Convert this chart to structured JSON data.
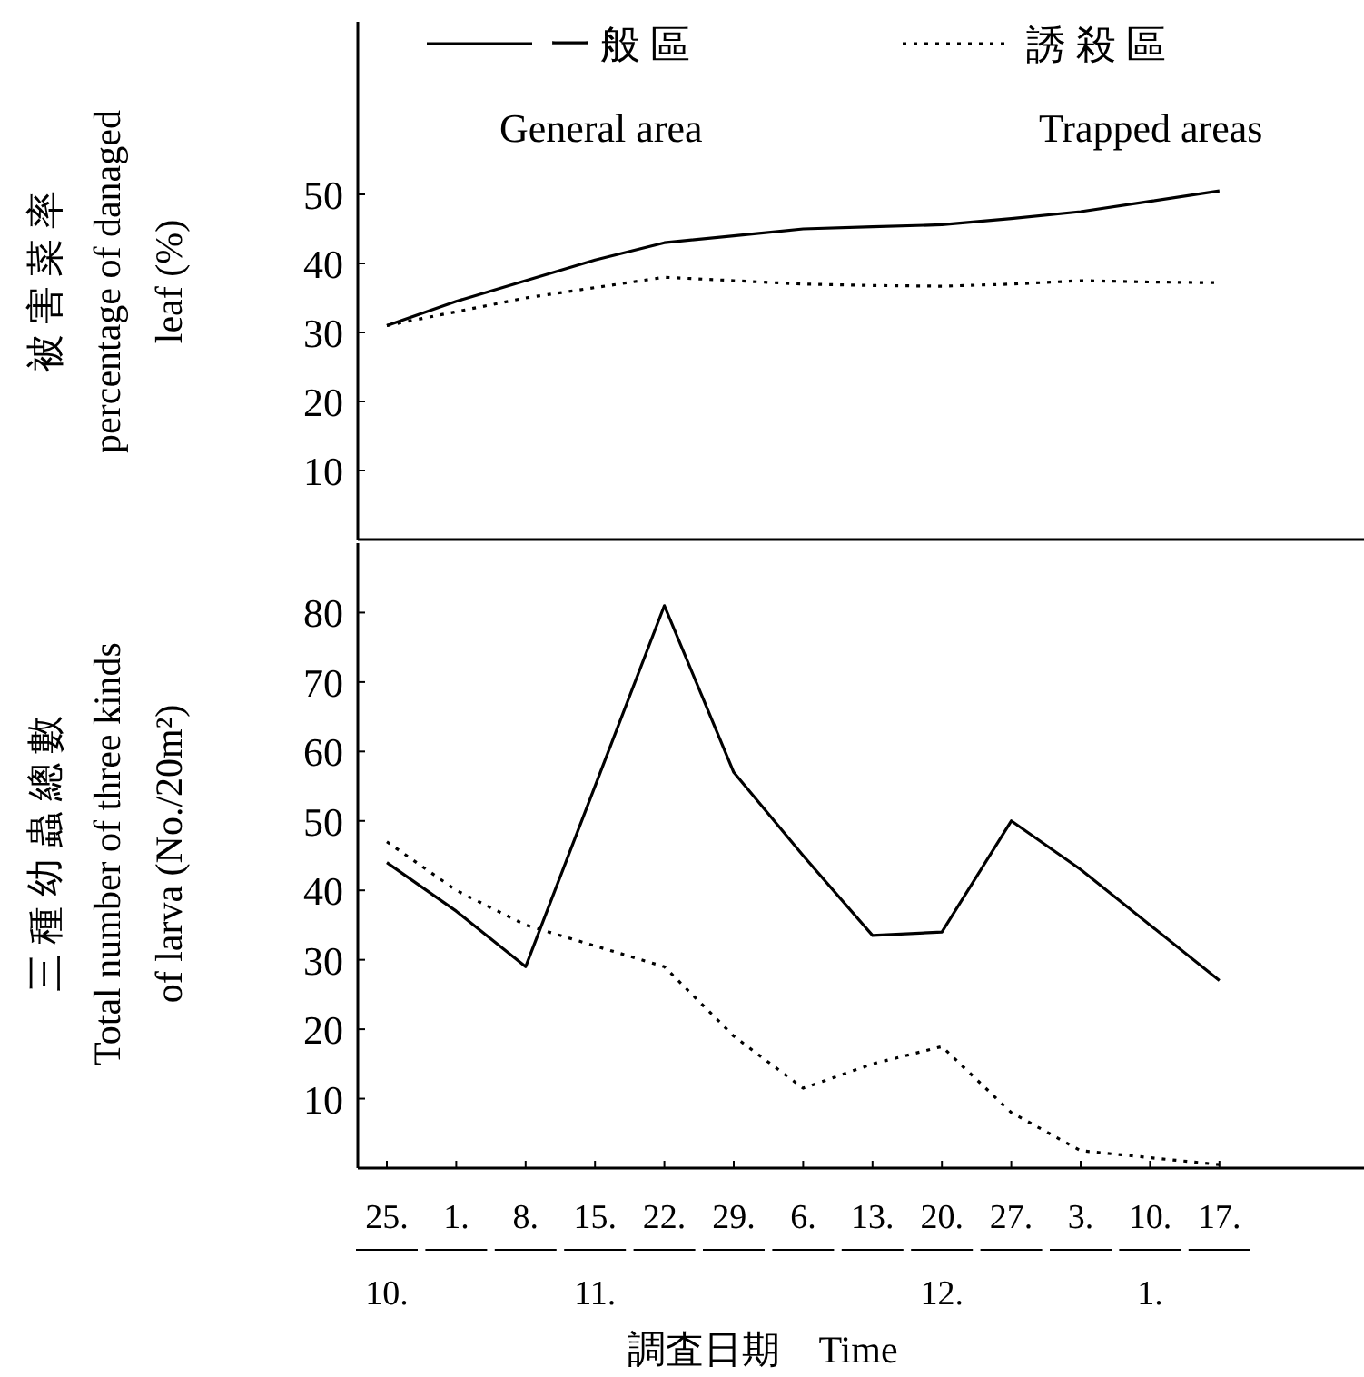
{
  "chart_data": [
    {
      "type": "line",
      "categories": [
        "25.",
        "1.",
        "8.",
        "15.",
        "22.",
        "29.",
        "6.",
        "13.",
        "20.",
        "27.",
        "3.",
        "10.",
        "17."
      ],
      "ylabel": "被 害 菜 率\npercentage of danaged\nleaf (%)",
      "ylim": [
        0,
        75
      ],
      "yticks": [
        10,
        20,
        30,
        40,
        50
      ],
      "tick_labels": "y",
      "legend": "top",
      "series": [
        {
          "name": "一 般 區\nGeneral area",
          "color": "#000000",
          "line_style": "solid",
          "values": [
            31,
            34.5,
            37.5,
            40.5,
            43,
            44,
            45,
            45.3,
            45.6,
            46.5,
            47.5,
            49,
            50.5
          ]
        },
        {
          "name": "誘 殺 區\nTrapped areas",
          "color": "#000000",
          "line_style": "dotted",
          "values": [
            31,
            33,
            35,
            36.5,
            38,
            37.5,
            37,
            36.8,
            36.7,
            37,
            37.5,
            37.3,
            37.2
          ]
        }
      ]
    },
    {
      "type": "line",
      "categories": [
        "25.\n10.",
        "1.",
        "8.",
        "15.\n11.",
        "22.",
        "29.",
        "6.",
        "13.",
        "20.\n12.",
        "27.",
        "3.",
        "10.\n1.",
        "17."
      ],
      "ylabel": "三 種 幼 蟲 總 數\nTotal number of three kinds\nof larva (No./20m²)",
      "xlabel": "調査日期　Time",
      "ylim": [
        0,
        90
      ],
      "yticks": [
        10,
        20,
        30,
        40,
        50,
        60,
        70,
        80
      ],
      "series": [
        {
          "color": "#000000",
          "line_style": "solid",
          "values": [
            44,
            37,
            29,
            55,
            81,
            57,
            45,
            33.5,
            34,
            50,
            43,
            35,
            27
          ]
        },
        {
          "color": "#000000",
          "line_style": "dotted",
          "values": [
            47,
            40,
            35,
            32,
            29,
            19,
            11.5,
            15,
            17.5,
            8,
            2.5,
            1.5,
            0.5
          ]
        }
      ]
    }
  ]
}
